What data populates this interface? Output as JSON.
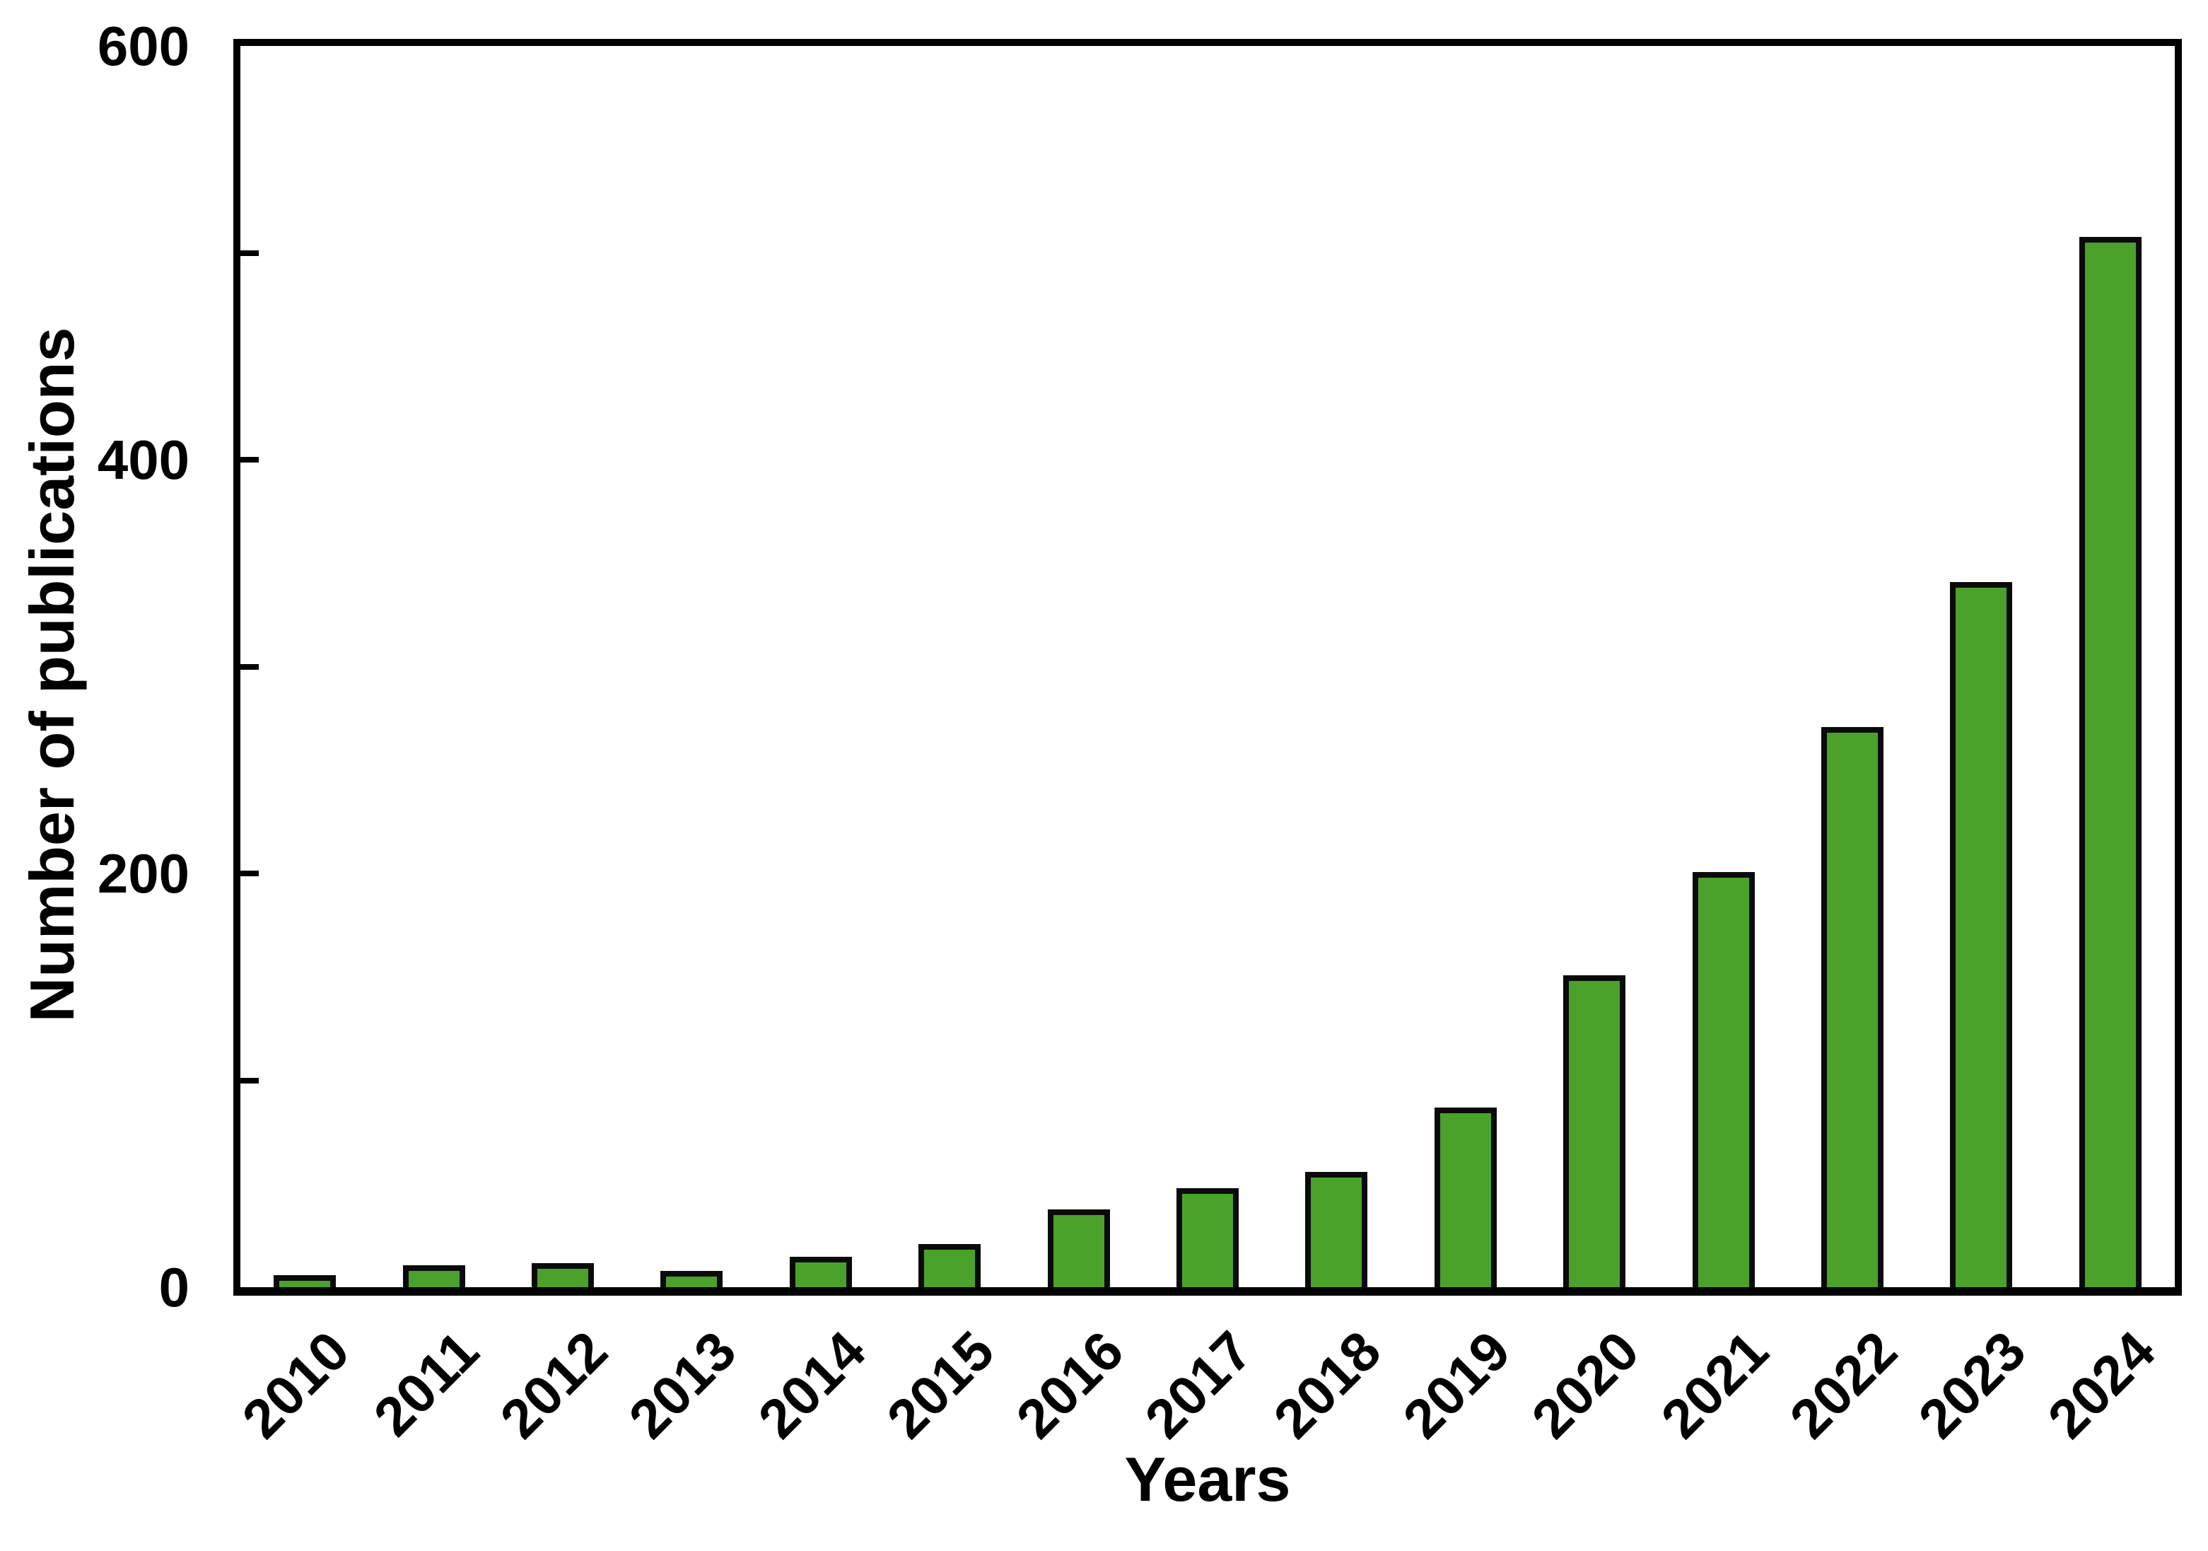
{
  "chart_data": {
    "type": "bar",
    "title": "",
    "xlabel": "Years",
    "ylabel": "Number of publications",
    "categories": [
      "2010",
      "2011",
      "2012",
      "2013",
      "2014",
      "2015",
      "2016",
      "2017",
      "2018",
      "2019",
      "2020",
      "2021",
      "2022",
      "2023",
      "2024"
    ],
    "values": [
      3,
      8,
      9,
      5,
      12,
      18,
      35,
      45,
      53,
      84,
      148,
      198,
      268,
      338,
      505
    ],
    "ylim": [
      0,
      600
    ],
    "yticks_major": [
      0,
      200,
      400,
      600
    ],
    "yticks_minor": [
      100,
      300,
      500
    ],
    "grid": false,
    "legend_position": "none",
    "bar_color": "#4ba22b",
    "bar_edge_color": "#0a0a0a",
    "frame_color": "#000000",
    "background_color": "#ffffff",
    "x_tick_rotation_deg": 45
  }
}
